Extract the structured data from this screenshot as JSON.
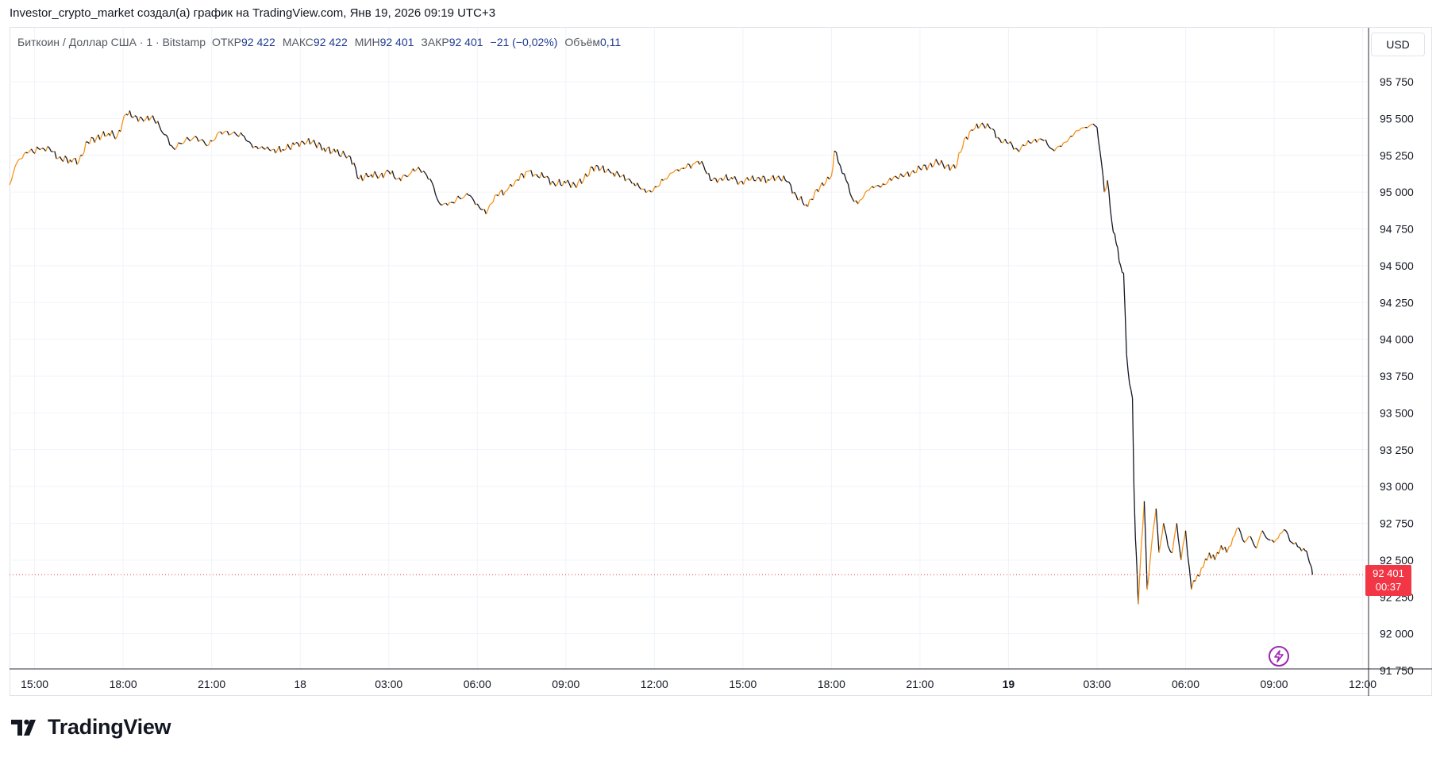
{
  "header": {
    "author_line": "Investor_crypto_market создал(а) график на TradingView.com, Янв 19, 2026 09:19 UTC+3"
  },
  "legend": {
    "symbol": "Биткоин / Доллар США · 1 · Bitstamp",
    "open_label": "ОТКР",
    "open_value": "92 422",
    "high_label": "МАКС",
    "high_value": "92 422",
    "low_label": "МИН",
    "low_value": "92 401",
    "close_label": "ЗАКР",
    "close_value": "92 401",
    "change": "−21 (−0,02%)",
    "volume_label": "Объём",
    "volume_value": "0,11"
  },
  "currency_button": "USD",
  "last_price": {
    "price": "92 401",
    "countdown": "00:37"
  },
  "brand": {
    "name": "TradingView"
  },
  "colors": {
    "up": "#f7931a",
    "down": "#131722",
    "last_price": "#f23645",
    "grid": "#f0f3fa",
    "border": "#e0e3eb",
    "axis_text": "#131722",
    "lightning": "#9c27b0"
  },
  "icons": {
    "brand_logo": "tradingview-logo-icon",
    "lightning": "lightning-icon"
  },
  "chart_data": {
    "type": "line",
    "title": "Биткоин / Доллар США · 1 · Bitstamp",
    "xlabel": "",
    "ylabel": "",
    "ylim": [
      91750,
      96000
    ],
    "grid": true,
    "y_ticks": [
      91750,
      92000,
      92250,
      92500,
      92750,
      93000,
      93250,
      93500,
      93750,
      94000,
      94250,
      94500,
      94750,
      95000,
      95250,
      95500,
      95750
    ],
    "y_tick_labels": [
      "91 750",
      "92 000",
      "92 250",
      "92 500",
      "92 750",
      "93 000",
      "93 250",
      "93 500",
      "93 750",
      "94 000",
      "94 250",
      "94 500",
      "94 750",
      "95 000",
      "95 250",
      "95 500",
      "95 750"
    ],
    "x_tick_labels": [
      "15:00",
      "18:00",
      "21:00",
      "18",
      "03:00",
      "06:00",
      "09:00",
      "12:00",
      "15:00",
      "18:00",
      "21:00",
      "19",
      "03:00",
      "06:00",
      "09:00",
      "12:00"
    ],
    "x_tick_bold": [
      false,
      false,
      false,
      false,
      false,
      false,
      false,
      false,
      false,
      false,
      false,
      true,
      false,
      false,
      false,
      false
    ],
    "x_ticks_hours": [
      0,
      3,
      6,
      9,
      12,
      15,
      18,
      21,
      24,
      27,
      30,
      33,
      36,
      39,
      42,
      45
    ],
    "x_range_hours": [
      -0.85,
      45.2
    ],
    "series": [
      {
        "values": [
          [
            -0.85,
            95050
          ],
          [
            -0.6,
            95200
          ],
          [
            -0.3,
            95270
          ],
          [
            0.2,
            95290
          ],
          [
            0.5,
            95300
          ],
          [
            0.8,
            95230
          ],
          [
            1.2,
            95220
          ],
          [
            1.5,
            95210
          ],
          [
            1.8,
            95340
          ],
          [
            2.1,
            95370
          ],
          [
            2.5,
            95400
          ],
          [
            2.8,
            95380
          ],
          [
            3.1,
            95530
          ],
          [
            3.4,
            95520
          ],
          [
            3.7,
            95480
          ],
          [
            4.0,
            95520
          ],
          [
            4.4,
            95390
          ],
          [
            4.7,
            95300
          ],
          [
            5.1,
            95350
          ],
          [
            5.5,
            95370
          ],
          [
            5.9,
            95320
          ],
          [
            6.3,
            95410
          ],
          [
            6.7,
            95400
          ],
          [
            7.1,
            95380
          ],
          [
            7.4,
            95300
          ],
          [
            7.7,
            95310
          ],
          [
            8.0,
            95280
          ],
          [
            8.4,
            95290
          ],
          [
            8.8,
            95320
          ],
          [
            9.1,
            95340
          ],
          [
            9.4,
            95340
          ],
          [
            9.8,
            95300
          ],
          [
            10.2,
            95270
          ],
          [
            10.7,
            95240
          ],
          [
            11.0,
            95090
          ],
          [
            11.4,
            95120
          ],
          [
            11.7,
            95110
          ],
          [
            12.0,
            95140
          ],
          [
            12.3,
            95090
          ],
          [
            12.7,
            95120
          ],
          [
            13.0,
            95170
          ],
          [
            13.4,
            95090
          ],
          [
            13.7,
            94930
          ],
          [
            14.0,
            94910
          ],
          [
            14.4,
            94960
          ],
          [
            14.7,
            94980
          ],
          [
            15.0,
            94920
          ],
          [
            15.3,
            94850
          ],
          [
            15.6,
            94980
          ],
          [
            16.0,
            95010
          ],
          [
            16.3,
            95080
          ],
          [
            16.7,
            95140
          ],
          [
            17.0,
            95120
          ],
          [
            17.3,
            95100
          ],
          [
            17.6,
            95060
          ],
          [
            18.0,
            95060
          ],
          [
            18.3,
            95050
          ],
          [
            18.6,
            95080
          ],
          [
            18.9,
            95170
          ],
          [
            19.2,
            95160
          ],
          [
            19.6,
            95130
          ],
          [
            19.9,
            95110
          ],
          [
            20.3,
            95060
          ],
          [
            20.6,
            95020
          ],
          [
            20.9,
            95000
          ],
          [
            21.3,
            95080
          ],
          [
            21.6,
            95130
          ],
          [
            21.9,
            95160
          ],
          [
            22.3,
            95190
          ],
          [
            22.6,
            95210
          ],
          [
            22.9,
            95080
          ],
          [
            23.2,
            95090
          ],
          [
            23.6,
            95100
          ],
          [
            23.9,
            95070
          ],
          [
            24.2,
            95080
          ],
          [
            24.5,
            95100
          ],
          [
            24.9,
            95080
          ],
          [
            25.2,
            95110
          ],
          [
            25.5,
            95070
          ],
          [
            25.8,
            94980
          ],
          [
            26.2,
            94900
          ],
          [
            26.5,
            95020
          ],
          [
            26.8,
            95060
          ],
          [
            27.0,
            95110
          ],
          [
            27.1,
            95280
          ],
          [
            27.3,
            95180
          ],
          [
            27.5,
            95080
          ],
          [
            27.7,
            94960
          ],
          [
            27.9,
            94920
          ],
          [
            28.2,
            95010
          ],
          [
            28.5,
            95040
          ],
          [
            28.8,
            95050
          ],
          [
            29.1,
            95100
          ],
          [
            29.4,
            95110
          ],
          [
            29.7,
            95130
          ],
          [
            30.0,
            95160
          ],
          [
            30.3,
            95180
          ],
          [
            30.6,
            95200
          ],
          [
            30.9,
            95180
          ],
          [
            31.2,
            95160
          ],
          [
            31.5,
            95360
          ],
          [
            31.8,
            95420
          ],
          [
            32.1,
            95470
          ],
          [
            32.4,
            95430
          ],
          [
            32.7,
            95360
          ],
          [
            33.0,
            95330
          ],
          [
            33.3,
            95290
          ],
          [
            33.6,
            95320
          ],
          [
            33.9,
            95360
          ],
          [
            34.2,
            95350
          ],
          [
            34.5,
            95290
          ],
          [
            34.8,
            95310
          ],
          [
            35.1,
            95380
          ],
          [
            35.4,
            95420
          ],
          [
            35.6,
            95440
          ],
          [
            35.8,
            95460
          ],
          [
            36.0,
            95440
          ],
          [
            36.15,
            95200
          ],
          [
            36.25,
            95000
          ],
          [
            36.35,
            95080
          ],
          [
            36.5,
            94800
          ],
          [
            36.65,
            94650
          ],
          [
            36.8,
            94500
          ],
          [
            36.9,
            94450
          ],
          [
            37.0,
            93900
          ],
          [
            37.1,
            93700
          ],
          [
            37.2,
            93600
          ],
          [
            37.25,
            93000
          ],
          [
            37.3,
            92650
          ],
          [
            37.35,
            92450
          ],
          [
            37.4,
            92200
          ],
          [
            37.5,
            92600
          ],
          [
            37.6,
            92900
          ],
          [
            37.7,
            92300
          ],
          [
            37.8,
            92500
          ],
          [
            37.9,
            92700
          ],
          [
            38.0,
            92850
          ],
          [
            38.1,
            92550
          ],
          [
            38.25,
            92750
          ],
          [
            38.4,
            92600
          ],
          [
            38.55,
            92550
          ],
          [
            38.7,
            92750
          ],
          [
            38.85,
            92500
          ],
          [
            39.0,
            92700
          ],
          [
            39.2,
            92300
          ],
          [
            39.4,
            92400
          ],
          [
            39.6,
            92450
          ],
          [
            39.8,
            92550
          ],
          [
            40.0,
            92500
          ],
          [
            40.2,
            92600
          ],
          [
            40.4,
            92550
          ],
          [
            40.6,
            92650
          ],
          [
            40.8,
            92720
          ],
          [
            41.0,
            92620
          ],
          [
            41.2,
            92660
          ],
          [
            41.4,
            92580
          ],
          [
            41.6,
            92700
          ],
          [
            41.8,
            92640
          ],
          [
            42.0,
            92620
          ],
          [
            42.2,
            92680
          ],
          [
            42.4,
            92700
          ],
          [
            42.6,
            92620
          ],
          [
            42.8,
            92590
          ],
          [
            43.0,
            92580
          ],
          [
            43.15,
            92520
          ],
          [
            43.25,
            92460
          ],
          [
            43.3,
            92401
          ]
        ]
      }
    ],
    "last_price": 92401
  }
}
